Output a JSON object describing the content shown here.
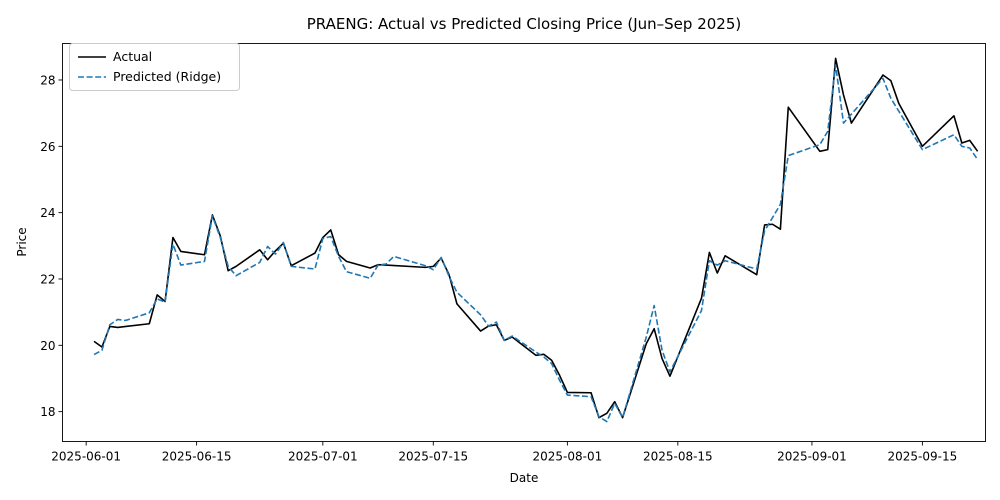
{
  "chart_data": {
    "type": "line",
    "title": "PRAENG: Actual vs Predicted Closing Price (Jun–Sep 2025)",
    "xlabel": "Date",
    "ylabel": "Price",
    "x_ticks": [
      "2025-06-01",
      "2025-06-15",
      "2025-07-01",
      "2025-07-15",
      "2025-08-01",
      "2025-08-15",
      "2025-09-01",
      "2025-09-15"
    ],
    "y_ticks": [
      18,
      20,
      22,
      24,
      26,
      28
    ],
    "xlim": [
      "2025-05-29",
      "2025-09-23"
    ],
    "ylim": [
      17.1,
      29.1
    ],
    "legend_position": "top-left",
    "grid": false,
    "series": [
      {
        "name": "Actual",
        "color": "#000000",
        "style": "solid",
        "points": [
          [
            "2025-06-02",
            20.12
          ],
          [
            "2025-06-03",
            19.95
          ],
          [
            "2025-06-04",
            20.57
          ],
          [
            "2025-06-05",
            20.54
          ],
          [
            "2025-06-09",
            20.65
          ],
          [
            "2025-06-10",
            21.52
          ],
          [
            "2025-06-11",
            21.32
          ],
          [
            "2025-06-12",
            23.25
          ],
          [
            "2025-06-13",
            22.83
          ],
          [
            "2025-06-16",
            22.73
          ],
          [
            "2025-06-17",
            23.93
          ],
          [
            "2025-06-18",
            23.3
          ],
          [
            "2025-06-19",
            22.25
          ],
          [
            "2025-06-20",
            22.38
          ],
          [
            "2025-06-23",
            22.88
          ],
          [
            "2025-06-24",
            22.58
          ],
          [
            "2025-06-25",
            22.85
          ],
          [
            "2025-06-26",
            23.08
          ],
          [
            "2025-06-27",
            22.4
          ],
          [
            "2025-06-30",
            22.78
          ],
          [
            "2025-07-01",
            23.25
          ],
          [
            "2025-07-02",
            23.48
          ],
          [
            "2025-07-03",
            22.73
          ],
          [
            "2025-07-04",
            22.53
          ],
          [
            "2025-07-07",
            22.33
          ],
          [
            "2025-07-08",
            22.43
          ],
          [
            "2025-07-09",
            22.42
          ],
          [
            "2025-07-14",
            22.35
          ],
          [
            "2025-07-15",
            22.38
          ],
          [
            "2025-07-16",
            22.63
          ],
          [
            "2025-07-17",
            22.13
          ],
          [
            "2025-07-18",
            21.25
          ],
          [
            "2025-07-21",
            20.43
          ],
          [
            "2025-07-22",
            20.58
          ],
          [
            "2025-07-23",
            20.62
          ],
          [
            "2025-07-24",
            20.15
          ],
          [
            "2025-07-25",
            20.25
          ],
          [
            "2025-07-28",
            19.7
          ],
          [
            "2025-07-29",
            19.73
          ],
          [
            "2025-07-30",
            19.55
          ],
          [
            "2025-07-31",
            19.1
          ],
          [
            "2025-08-01",
            18.58
          ],
          [
            "2025-08-04",
            18.57
          ],
          [
            "2025-08-05",
            17.82
          ],
          [
            "2025-08-06",
            17.95
          ],
          [
            "2025-08-07",
            18.3
          ],
          [
            "2025-08-08",
            17.82
          ],
          [
            "2025-08-11",
            20.05
          ],
          [
            "2025-08-12",
            20.5
          ],
          [
            "2025-08-13",
            19.6
          ],
          [
            "2025-08-14",
            19.07
          ],
          [
            "2025-08-18",
            21.42
          ],
          [
            "2025-08-19",
            22.8
          ],
          [
            "2025-08-20",
            22.18
          ],
          [
            "2025-08-21",
            22.7
          ],
          [
            "2025-08-25",
            22.13
          ],
          [
            "2025-08-26",
            23.63
          ],
          [
            "2025-08-27",
            23.65
          ],
          [
            "2025-08-28",
            23.5
          ],
          [
            "2025-08-29",
            27.18
          ],
          [
            "2025-09-02",
            25.85
          ],
          [
            "2025-09-03",
            25.9
          ],
          [
            "2025-09-04",
            28.65
          ],
          [
            "2025-09-05",
            27.55
          ],
          [
            "2025-09-06",
            26.7
          ],
          [
            "2025-09-10",
            28.15
          ],
          [
            "2025-09-11",
            27.98
          ],
          [
            "2025-09-12",
            27.3
          ],
          [
            "2025-09-15",
            26.0
          ],
          [
            "2025-09-19",
            26.92
          ],
          [
            "2025-09-20",
            26.1
          ],
          [
            "2025-09-21",
            26.18
          ],
          [
            "2025-09-22",
            25.85
          ]
        ]
      },
      {
        "name": "Predicted (Ridge)",
        "color": "#1f77b4",
        "style": "dashed",
        "points": [
          [
            "2025-06-02",
            19.72
          ],
          [
            "2025-06-03",
            19.85
          ],
          [
            "2025-06-04",
            20.62
          ],
          [
            "2025-06-05",
            20.78
          ],
          [
            "2025-06-06",
            20.75
          ],
          [
            "2025-06-09",
            20.98
          ],
          [
            "2025-06-10",
            21.4
          ],
          [
            "2025-06-11",
            21.3
          ],
          [
            "2025-06-12",
            23.05
          ],
          [
            "2025-06-13",
            22.42
          ],
          [
            "2025-06-16",
            22.53
          ],
          [
            "2025-06-17",
            23.9
          ],
          [
            "2025-06-18",
            23.25
          ],
          [
            "2025-06-19",
            22.38
          ],
          [
            "2025-06-20",
            22.1
          ],
          [
            "2025-06-23",
            22.5
          ],
          [
            "2025-06-24",
            22.98
          ],
          [
            "2025-06-25",
            22.75
          ],
          [
            "2025-06-26",
            23.1
          ],
          [
            "2025-06-27",
            22.38
          ],
          [
            "2025-06-30",
            22.3
          ],
          [
            "2025-07-01",
            23.22
          ],
          [
            "2025-07-02",
            23.28
          ],
          [
            "2025-07-03",
            22.68
          ],
          [
            "2025-07-04",
            22.22
          ],
          [
            "2025-07-07",
            22.02
          ],
          [
            "2025-07-08",
            22.42
          ],
          [
            "2025-07-09",
            22.45
          ],
          [
            "2025-07-10",
            22.68
          ],
          [
            "2025-07-14",
            22.4
          ],
          [
            "2025-07-15",
            22.28
          ],
          [
            "2025-07-16",
            22.65
          ],
          [
            "2025-07-17",
            22.08
          ],
          [
            "2025-07-18",
            21.6
          ],
          [
            "2025-07-21",
            20.92
          ],
          [
            "2025-07-22",
            20.58
          ],
          [
            "2025-07-23",
            20.7
          ],
          [
            "2025-07-24",
            20.15
          ],
          [
            "2025-07-25",
            20.28
          ],
          [
            "2025-07-28",
            19.8
          ],
          [
            "2025-07-29",
            19.65
          ],
          [
            "2025-07-30",
            19.45
          ],
          [
            "2025-07-31",
            18.95
          ],
          [
            "2025-08-01",
            18.5
          ],
          [
            "2025-08-04",
            18.45
          ],
          [
            "2025-08-05",
            17.85
          ],
          [
            "2025-08-06",
            17.7
          ],
          [
            "2025-08-07",
            18.25
          ],
          [
            "2025-08-08",
            17.82
          ],
          [
            "2025-08-11",
            20.25
          ],
          [
            "2025-08-12",
            21.2
          ],
          [
            "2025-08-13",
            19.85
          ],
          [
            "2025-08-14",
            19.2
          ],
          [
            "2025-08-18",
            21.05
          ],
          [
            "2025-08-19",
            22.55
          ],
          [
            "2025-08-20",
            22.42
          ],
          [
            "2025-08-21",
            22.55
          ],
          [
            "2025-08-25",
            22.3
          ],
          [
            "2025-08-26",
            23.45
          ],
          [
            "2025-08-28",
            24.25
          ],
          [
            "2025-08-29",
            25.72
          ],
          [
            "2025-09-02",
            26.05
          ],
          [
            "2025-09-03",
            26.45
          ],
          [
            "2025-09-04",
            28.45
          ],
          [
            "2025-09-05",
            26.7
          ],
          [
            "2025-09-10",
            28.05
          ],
          [
            "2025-09-11",
            27.45
          ],
          [
            "2025-09-15",
            25.9
          ],
          [
            "2025-09-19",
            26.35
          ],
          [
            "2025-09-20",
            26.0
          ],
          [
            "2025-09-21",
            25.95
          ],
          [
            "2025-09-22",
            25.6
          ]
        ]
      }
    ]
  }
}
